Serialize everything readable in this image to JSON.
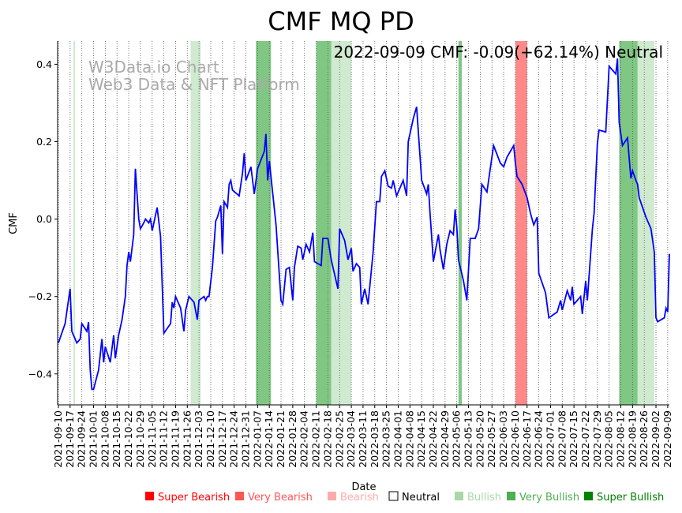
{
  "chart_data": {
    "type": "line",
    "title": "CMF MQ PD",
    "xlabel": "Date",
    "ylabel": "CMF",
    "start_date": "2021-09-10",
    "annotation": "2022-09-09 CMF: -0.09(+62.14%) Neutral",
    "watermark": [
      "W3Data.io Chart",
      "Web3 Data & NFT Platform"
    ],
    "ylim": [
      -0.48,
      0.46
    ],
    "xlim_days": [
      0,
      365
    ],
    "yticks": [
      -0.4,
      -0.2,
      0.0,
      0.2,
      0.4
    ],
    "ytick_labels": [
      "−0.4",
      "−0.2",
      "0.0",
      "0.2",
      "0.4"
    ],
    "xtick_labels": [
      "2021-09-10",
      "2021-09-17",
      "2021-09-24",
      "2021-10-01",
      "2021-10-08",
      "2021-10-15",
      "2021-10-22",
      "2021-10-29",
      "2021-11-05",
      "2021-11-12",
      "2021-11-19",
      "2021-11-26",
      "2021-12-03",
      "2021-12-10",
      "2021-12-17",
      "2021-12-24",
      "2021-12-31",
      "2022-01-07",
      "2022-01-14",
      "2022-01-21",
      "2022-01-28",
      "2022-02-04",
      "2022-02-11",
      "2022-02-18",
      "2022-02-25",
      "2022-03-04",
      "2022-03-11",
      "2022-03-18",
      "2022-03-25",
      "2022-04-01",
      "2022-04-08",
      "2022-04-15",
      "2022-04-22",
      "2022-04-29",
      "2022-05-06",
      "2022-05-13",
      "2022-05-20",
      "2022-05-27",
      "2022-06-03",
      "2022-06-10",
      "2022-06-17",
      "2022-06-24",
      "2022-07-01",
      "2022-07-08",
      "2022-07-15",
      "2022-07-22",
      "2022-07-29",
      "2022-08-05",
      "2022-08-12",
      "2022-08-19",
      "2022-08-26",
      "2022-09-02",
      "2022-09-09"
    ],
    "series": [
      {
        "name": "CMF",
        "color": "#0000ff",
        "points": [
          [
            0,
            -0.32
          ],
          [
            4,
            -0.27
          ],
          [
            5,
            -0.24
          ],
          [
            7,
            -0.18
          ],
          [
            8,
            -0.29
          ],
          [
            11,
            -0.32
          ],
          [
            13,
            -0.31
          ],
          [
            14,
            -0.27
          ],
          [
            17,
            -0.29
          ],
          [
            18,
            -0.266
          ],
          [
            19,
            -0.39
          ],
          [
            20,
            -0.44
          ],
          [
            21,
            -0.44
          ],
          [
            24,
            -0.39
          ],
          [
            26,
            -0.31
          ],
          [
            27,
            -0.37
          ],
          [
            28,
            -0.33
          ],
          [
            31,
            -0.37
          ],
          [
            33,
            -0.3
          ],
          [
            34,
            -0.36
          ],
          [
            36,
            -0.3
          ],
          [
            38,
            -0.26
          ],
          [
            40,
            -0.2
          ],
          [
            41,
            -0.12
          ],
          [
            42,
            -0.085
          ],
          [
            43,
            -0.11
          ],
          [
            45,
            -0.04
          ],
          [
            46,
            0.13
          ],
          [
            48,
            0.0
          ],
          [
            49,
            -0.025
          ],
          [
            51,
            -0.01
          ],
          [
            52,
            0.0
          ],
          [
            54,
            -0.01
          ],
          [
            55,
            0.0
          ],
          [
            56,
            -0.03
          ],
          [
            59,
            0.03
          ],
          [
            61,
            -0.045
          ],
          [
            63,
            -0.295
          ],
          [
            67,
            -0.27
          ],
          [
            68,
            -0.215
          ],
          [
            69,
            -0.23
          ],
          [
            70,
            -0.2
          ],
          [
            73,
            -0.23
          ],
          [
            75,
            -0.29
          ],
          [
            76,
            -0.235
          ],
          [
            78,
            -0.2
          ],
          [
            81,
            -0.215
          ],
          [
            83,
            -0.26
          ],
          [
            84,
            -0.21
          ],
          [
            87,
            -0.2
          ],
          [
            88,
            -0.21
          ],
          [
            89,
            -0.2
          ],
          [
            90,
            -0.2
          ],
          [
            92,
            -0.125
          ],
          [
            94,
            -0.005
          ],
          [
            95,
            0.005
          ],
          [
            97,
            0.035
          ],
          [
            98,
            -0.09
          ],
          [
            99,
            0.045
          ],
          [
            101,
            0.03
          ],
          [
            102,
            0.09
          ],
          [
            103,
            0.1
          ],
          [
            104,
            0.075
          ],
          [
            108,
            0.06
          ],
          [
            110,
            0.12
          ],
          [
            111,
            0.17
          ],
          [
            112,
            0.1
          ],
          [
            115,
            0.135
          ],
          [
            117,
            0.065
          ],
          [
            119,
            0.13
          ],
          [
            123,
            0.175
          ],
          [
            124,
            0.22
          ],
          [
            125,
            0.1
          ],
          [
            126,
            0.15
          ],
          [
            130,
            -0.015
          ],
          [
            133,
            -0.21
          ],
          [
            134,
            -0.22
          ],
          [
            136,
            -0.13
          ],
          [
            138,
            -0.125
          ],
          [
            140,
            -0.21
          ],
          [
            141,
            -0.125
          ],
          [
            143,
            -0.07
          ],
          [
            145,
            -0.075
          ],
          [
            146,
            -0.105
          ],
          [
            148,
            -0.065
          ],
          [
            150,
            -0.085
          ],
          [
            152,
            -0.035
          ],
          [
            153,
            -0.11
          ],
          [
            157,
            -0.12
          ],
          [
            158,
            -0.05
          ],
          [
            161,
            -0.05
          ],
          [
            163,
            -0.105
          ],
          [
            167,
            -0.18
          ],
          [
            168,
            -0.025
          ],
          [
            171,
            -0.055
          ],
          [
            173,
            -0.105
          ],
          [
            175,
            -0.075
          ],
          [
            176,
            -0.135
          ],
          [
            178,
            -0.115
          ],
          [
            180,
            -0.125
          ],
          [
            181,
            -0.22
          ],
          [
            183,
            -0.18
          ],
          [
            185,
            -0.22
          ],
          [
            188,
            -0.085
          ],
          [
            190,
            0.045
          ],
          [
            192,
            0.045
          ],
          [
            193,
            0.11
          ],
          [
            195,
            0.125
          ],
          [
            197,
            0.085
          ],
          [
            199,
            0.08
          ],
          [
            200,
            0.1
          ],
          [
            202,
            0.06
          ],
          [
            206,
            0.1
          ],
          [
            208,
            0.06
          ],
          [
            209,
            0.2
          ],
          [
            212,
            0.26
          ],
          [
            214,
            0.29
          ],
          [
            217,
            0.1
          ],
          [
            220,
            0.065
          ],
          [
            221,
            0.09
          ],
          [
            222,
            0.015
          ],
          [
            224,
            -0.11
          ],
          [
            227,
            -0.04
          ],
          [
            228,
            -0.08
          ],
          [
            230,
            -0.13
          ],
          [
            232,
            -0.065
          ],
          [
            234,
            -0.03
          ],
          [
            236,
            -0.04
          ],
          [
            237,
            0.025
          ],
          [
            238,
            -0.02
          ],
          [
            239,
            -0.105
          ],
          [
            242,
            -0.16
          ],
          [
            244,
            -0.21
          ],
          [
            246,
            -0.05
          ],
          [
            249,
            -0.05
          ],
          [
            251,
            -0.025
          ],
          [
            253,
            0.09
          ],
          [
            256,
            0.07
          ],
          [
            258,
            0.13
          ],
          [
            260,
            0.19
          ],
          [
            264,
            0.145
          ],
          [
            266,
            0.135
          ],
          [
            268,
            0.16
          ],
          [
            272,
            0.19
          ],
          [
            273,
            0.145
          ],
          [
            274,
            0.11
          ],
          [
            277,
            0.09
          ],
          [
            280,
            0.055
          ],
          [
            282,
            0.015
          ],
          [
            284,
            -0.015
          ],
          [
            286,
            0.005
          ],
          [
            287,
            -0.14
          ],
          [
            291,
            -0.19
          ],
          [
            293,
            -0.255
          ],
          [
            298,
            -0.24
          ],
          [
            300,
            -0.21
          ],
          [
            301,
            -0.235
          ],
          [
            304,
            -0.185
          ],
          [
            306,
            -0.21
          ],
          [
            307,
            -0.175
          ],
          [
            308,
            -0.22
          ],
          [
            312,
            -0.2
          ],
          [
            313,
            -0.245
          ],
          [
            315,
            -0.16
          ],
          [
            316,
            -0.21
          ],
          [
            319,
            -0.025
          ],
          [
            320,
            0.015
          ],
          [
            322,
            0.195
          ],
          [
            323,
            0.23
          ],
          [
            327,
            0.225
          ],
          [
            329,
            0.395
          ],
          [
            333,
            0.375
          ],
          [
            334,
            0.415
          ],
          [
            335,
            0.25
          ],
          [
            337,
            0.19
          ],
          [
            340,
            0.21
          ],
          [
            342,
            0.105
          ],
          [
            343,
            0.125
          ],
          [
            345,
            0.1
          ],
          [
            346,
            0.09
          ],
          [
            347,
            0.055
          ],
          [
            351,
            0.005
          ],
          [
            354,
            -0.025
          ],
          [
            356,
            -0.085
          ],
          [
            357,
            -0.255
          ],
          [
            358,
            -0.265
          ],
          [
            362,
            -0.255
          ],
          [
            363,
            -0.23
          ],
          [
            364,
            -0.24
          ],
          [
            365,
            -0.09
          ]
        ]
      }
    ],
    "bands": [
      {
        "start": 9,
        "end": 10,
        "signal": "Bullish"
      },
      {
        "start": 79,
        "end": 85,
        "signal": "Bullish"
      },
      {
        "start": 118,
        "end": 127,
        "signal": "Very Bullish"
      },
      {
        "start": 154,
        "end": 163,
        "signal": "Very Bullish"
      },
      {
        "start": 163,
        "end": 175,
        "signal": "Bullish"
      },
      {
        "start": 239,
        "end": 241,
        "signal": "Very Bullish"
      },
      {
        "start": 273,
        "end": 280,
        "signal": "Very Bearish"
      },
      {
        "start": 335,
        "end": 346,
        "signal": "Very Bullish"
      },
      {
        "start": 346,
        "end": 356,
        "signal": "Bullish"
      }
    ],
    "legend": [
      {
        "label": "Super Bearish",
        "color": "#ff0000"
      },
      {
        "label": "Very Bearish",
        "color": "#ff5555"
      },
      {
        "label": "Bearish",
        "color": "#ffaaaa"
      },
      {
        "label": "Neutral",
        "color": "#ffffff"
      },
      {
        "label": "Bullish",
        "color": "#a8d8a8"
      },
      {
        "label": "Very Bullish",
        "color": "#4caf50"
      },
      {
        "label": "Super Bullish",
        "color": "#008000"
      }
    ],
    "legend_position": "bottom-center"
  }
}
